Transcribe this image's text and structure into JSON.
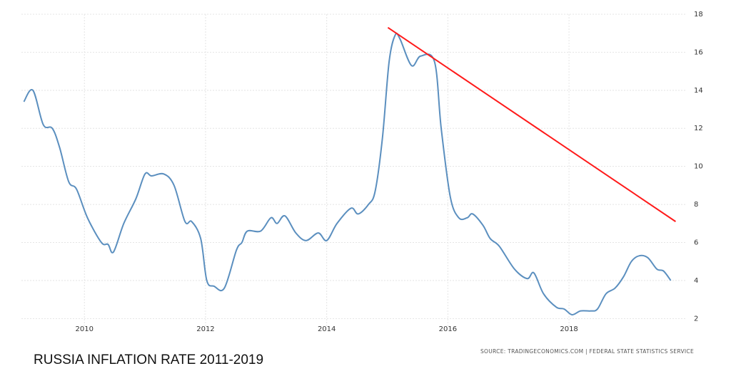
{
  "chart_data": {
    "type": "line",
    "title": "RUSSIA INFLATION RATE 2011-2019",
    "source": "SOURCE: TRADINGECONOMICS.COM  |  FEDERAL STATE STATISTICS SERVICE",
    "x": [
      2009.0,
      2009.15,
      2009.32,
      2009.47,
      2009.59,
      2009.74,
      2009.87,
      2010.05,
      2010.28,
      2010.39,
      2010.48,
      2010.65,
      2010.85,
      2011.0,
      2011.11,
      2011.31,
      2011.48,
      2011.66,
      2011.77,
      2011.92,
      2012.02,
      2012.14,
      2012.31,
      2012.51,
      2012.6,
      2012.69,
      2012.91,
      2013.08,
      2013.18,
      2013.31,
      2013.49,
      2013.66,
      2013.86,
      2014.0,
      2014.17,
      2014.4,
      2014.52,
      2014.69,
      2014.8,
      2014.92,
      2015.03,
      2015.13,
      2015.21,
      2015.4,
      2015.55,
      2015.78,
      2015.89,
      2016.04,
      2016.18,
      2016.32,
      2016.41,
      2016.58,
      2016.7,
      2016.85,
      2017.1,
      2017.31,
      2017.42,
      2017.58,
      2017.79,
      2017.92,
      2018.05,
      2018.19,
      2018.36,
      2018.47,
      2018.61,
      2018.76,
      2018.9,
      2019.03,
      2019.16,
      2019.3,
      2019.45,
      2019.56,
      2019.68
    ],
    "values": [
      13.4,
      14.0,
      12.2,
      12.0,
      11.0,
      9.2,
      8.8,
      7.3,
      6.0,
      5.9,
      5.5,
      7.0,
      8.3,
      9.6,
      9.5,
      9.6,
      9.0,
      7.1,
      7.1,
      6.2,
      4.0,
      3.7,
      3.6,
      5.6,
      6.0,
      6.6,
      6.6,
      7.3,
      7.0,
      7.4,
      6.5,
      6.1,
      6.5,
      6.1,
      7.0,
      7.8,
      7.5,
      8.0,
      8.7,
      11.5,
      15.5,
      16.9,
      16.7,
      15.3,
      15.8,
      15.5,
      12.0,
      8.4,
      7.3,
      7.3,
      7.5,
      6.9,
      6.2,
      5.8,
      4.6,
      4.1,
      4.4,
      3.3,
      2.6,
      2.5,
      2.2,
      2.4,
      2.4,
      2.5,
      3.3,
      3.6,
      4.2,
      5.0,
      5.3,
      5.2,
      4.6,
      4.5,
      4.0
    ],
    "color": "#5b8fbf",
    "trend_line": {
      "x": [
        2015.01,
        2019.76
      ],
      "values": [
        17.3,
        7.1
      ],
      "color": "#ff1a1a"
    },
    "xlim": [
      2008.96,
      2019.92
    ],
    "xticks": [
      2010,
      2012,
      2014,
      2016,
      2018
    ],
    "ylim": [
      1.6,
      18
    ],
    "yticks": [
      2,
      4,
      6,
      8,
      10,
      12,
      14,
      16,
      18
    ],
    "grid": true
  }
}
